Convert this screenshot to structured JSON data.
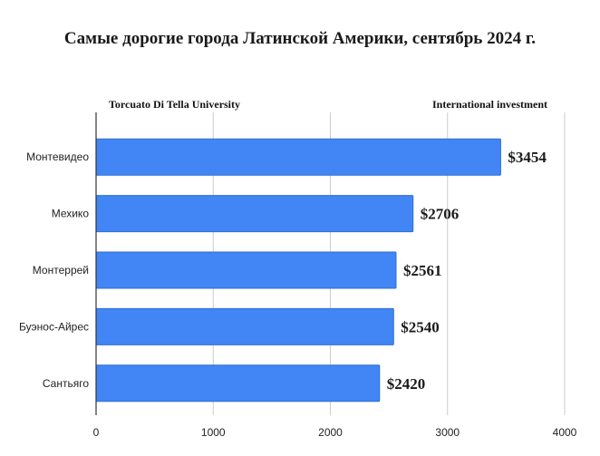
{
  "chart_data": {
    "type": "bar",
    "orientation": "horizontal",
    "title": "Самые дорогие города Латинской Америки, сентябрь 2024 г.",
    "source_left": "Torcuato Di Tella University",
    "source_right": "International investment",
    "categories": [
      "Монтевидео",
      "Мехико",
      "Монтеррей",
      "Буэнос-Айрес",
      "Сантьяго"
    ],
    "values": [
      3454,
      2706,
      2561,
      2540,
      2420
    ],
    "value_labels": [
      "$3454",
      "$2706",
      "$2561",
      "$2540",
      "$2420"
    ],
    "xticks": [
      "0",
      "1000",
      "2000",
      "3000",
      "4000"
    ],
    "xlim": [
      0,
      4000
    ],
    "grid": true,
    "bar_color": "#4285f4",
    "bar_edge_color": "#2f6fd6"
  }
}
